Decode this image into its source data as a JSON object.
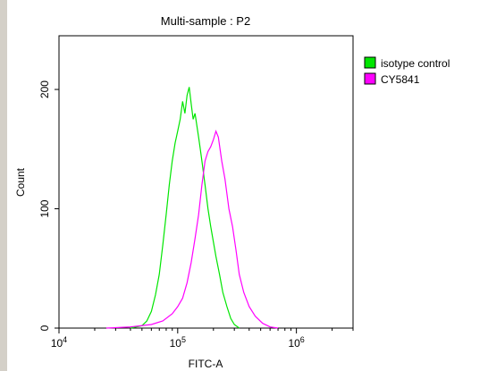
{
  "chart_data": {
    "type": "line",
    "title": "Multi-sample : P2",
    "xlabel": "FITC-A",
    "ylabel": "Count",
    "xscale": "log",
    "xlim": [
      10000,
      3000000
    ],
    "ylim": [
      0,
      245
    ],
    "x_ticks": [
      {
        "value": 10000,
        "base": "10",
        "exp": "4"
      },
      {
        "value": 100000,
        "base": "10",
        "exp": "5"
      },
      {
        "value": 1000000,
        "base": "10",
        "exp": "6"
      }
    ],
    "y_ticks": [
      {
        "value": 0,
        "label": "0"
      },
      {
        "value": 100,
        "label": "100"
      },
      {
        "value": 200,
        "label": "200"
      }
    ],
    "legend_position": "right",
    "series": [
      {
        "name": "isotype control",
        "color": "#00e600",
        "points": [
          [
            40000,
            0
          ],
          [
            50000,
            2
          ],
          [
            55000,
            6
          ],
          [
            60000,
            14
          ],
          [
            65000,
            28
          ],
          [
            70000,
            45
          ],
          [
            75000,
            70
          ],
          [
            80000,
            95
          ],
          [
            85000,
            120
          ],
          [
            90000,
            140
          ],
          [
            95000,
            155
          ],
          [
            100000,
            165
          ],
          [
            105000,
            175
          ],
          [
            110000,
            190
          ],
          [
            115000,
            180
          ],
          [
            120000,
            195
          ],
          [
            125000,
            202
          ],
          [
            130000,
            188
          ],
          [
            135000,
            175
          ],
          [
            140000,
            180
          ],
          [
            150000,
            160
          ],
          [
            155000,
            150
          ],
          [
            160000,
            140
          ],
          [
            170000,
            120
          ],
          [
            180000,
            100
          ],
          [
            190000,
            85
          ],
          [
            200000,
            72
          ],
          [
            210000,
            60
          ],
          [
            225000,
            45
          ],
          [
            240000,
            30
          ],
          [
            260000,
            18
          ],
          [
            280000,
            8
          ],
          [
            300000,
            3
          ],
          [
            330000,
            0
          ]
        ]
      },
      {
        "name": "CY5841",
        "color": "#ff00ff",
        "points": [
          [
            25000,
            0
          ],
          [
            40000,
            1
          ],
          [
            60000,
            3
          ],
          [
            75000,
            6
          ],
          [
            90000,
            12
          ],
          [
            100000,
            18
          ],
          [
            110000,
            25
          ],
          [
            120000,
            38
          ],
          [
            130000,
            55
          ],
          [
            140000,
            75
          ],
          [
            150000,
            95
          ],
          [
            160000,
            120
          ],
          [
            170000,
            140
          ],
          [
            180000,
            148
          ],
          [
            190000,
            152
          ],
          [
            200000,
            158
          ],
          [
            210000,
            165
          ],
          [
            220000,
            160
          ],
          [
            235000,
            140
          ],
          [
            250000,
            125
          ],
          [
            270000,
            100
          ],
          [
            290000,
            85
          ],
          [
            310000,
            65
          ],
          [
            330000,
            45
          ],
          [
            360000,
            30
          ],
          [
            400000,
            18
          ],
          [
            450000,
            10
          ],
          [
            520000,
            4
          ],
          [
            600000,
            1
          ],
          [
            700000,
            0
          ]
        ]
      }
    ]
  }
}
